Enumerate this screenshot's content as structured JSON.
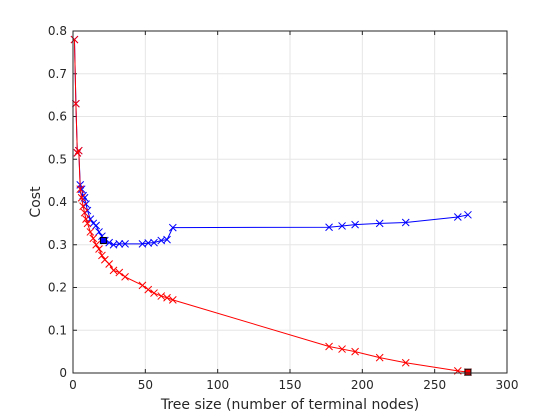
{
  "chart_data": {
    "type": "line",
    "title": "",
    "xlabel": "Tree size (number of terminal nodes)",
    "ylabel": "Cost",
    "xlim": [
      0,
      300
    ],
    "ylim": [
      0,
      0.8
    ],
    "xticks": [
      0,
      50,
      100,
      150,
      200,
      250,
      300
    ],
    "yticks": [
      0,
      0.1,
      0.2,
      0.3,
      0.4,
      0.5,
      0.6,
      0.7,
      0.8
    ],
    "xtick_labels": [
      "0",
      "50",
      "100",
      "150",
      "200",
      "250",
      "300"
    ],
    "ytick_labels": [
      "0",
      "0.1",
      "0.2",
      "0.3",
      "0.4",
      "0.5",
      "0.6",
      "0.7",
      "0.8"
    ],
    "grid": true,
    "legend": false,
    "series": [
      {
        "color": "#0000ff",
        "marker": "x",
        "x": [
          1,
          2,
          3,
          4,
          5,
          6,
          7,
          8,
          9,
          10,
          12,
          14,
          16,
          18,
          20,
          22,
          25,
          28,
          32,
          36,
          48,
          52,
          56,
          61,
          65,
          69,
          177,
          186,
          195,
          212,
          230,
          266,
          273
        ],
        "y": [
          0.78,
          0.63,
          0.515,
          0.52,
          0.44,
          0.43,
          0.415,
          0.41,
          0.395,
          0.38,
          0.36,
          0.35,
          0.345,
          0.33,
          0.32,
          0.31,
          0.305,
          0.3,
          0.302,
          0.302,
          0.302,
          0.304,
          0.305,
          0.31,
          0.312,
          0.34,
          0.341,
          0.344,
          0.347,
          0.35,
          0.352,
          0.365,
          0.37
        ]
      },
      {
        "color": "#ff0000",
        "marker": "x",
        "x": [
          1,
          2,
          3,
          4,
          5,
          6,
          7,
          8,
          9,
          10,
          12,
          14,
          16,
          18,
          20,
          22,
          25,
          28,
          32,
          36,
          48,
          52,
          56,
          61,
          65,
          69,
          177,
          186,
          195,
          212,
          230,
          266,
          273
        ],
        "y": [
          0.78,
          0.63,
          0.515,
          0.52,
          0.43,
          0.41,
          0.39,
          0.375,
          0.36,
          0.35,
          0.33,
          0.315,
          0.3,
          0.29,
          0.275,
          0.265,
          0.255,
          0.24,
          0.235,
          0.225,
          0.205,
          0.195,
          0.187,
          0.18,
          0.176,
          0.171,
          0.062,
          0.056,
          0.05,
          0.036,
          0.024,
          0.005,
          0.002
        ]
      }
    ],
    "highlighted_points": [
      {
        "x": 21,
        "y": 0.31,
        "color": "#0000ff"
      },
      {
        "x": 273,
        "y": 0.002,
        "color": "#ff0000"
      }
    ]
  }
}
